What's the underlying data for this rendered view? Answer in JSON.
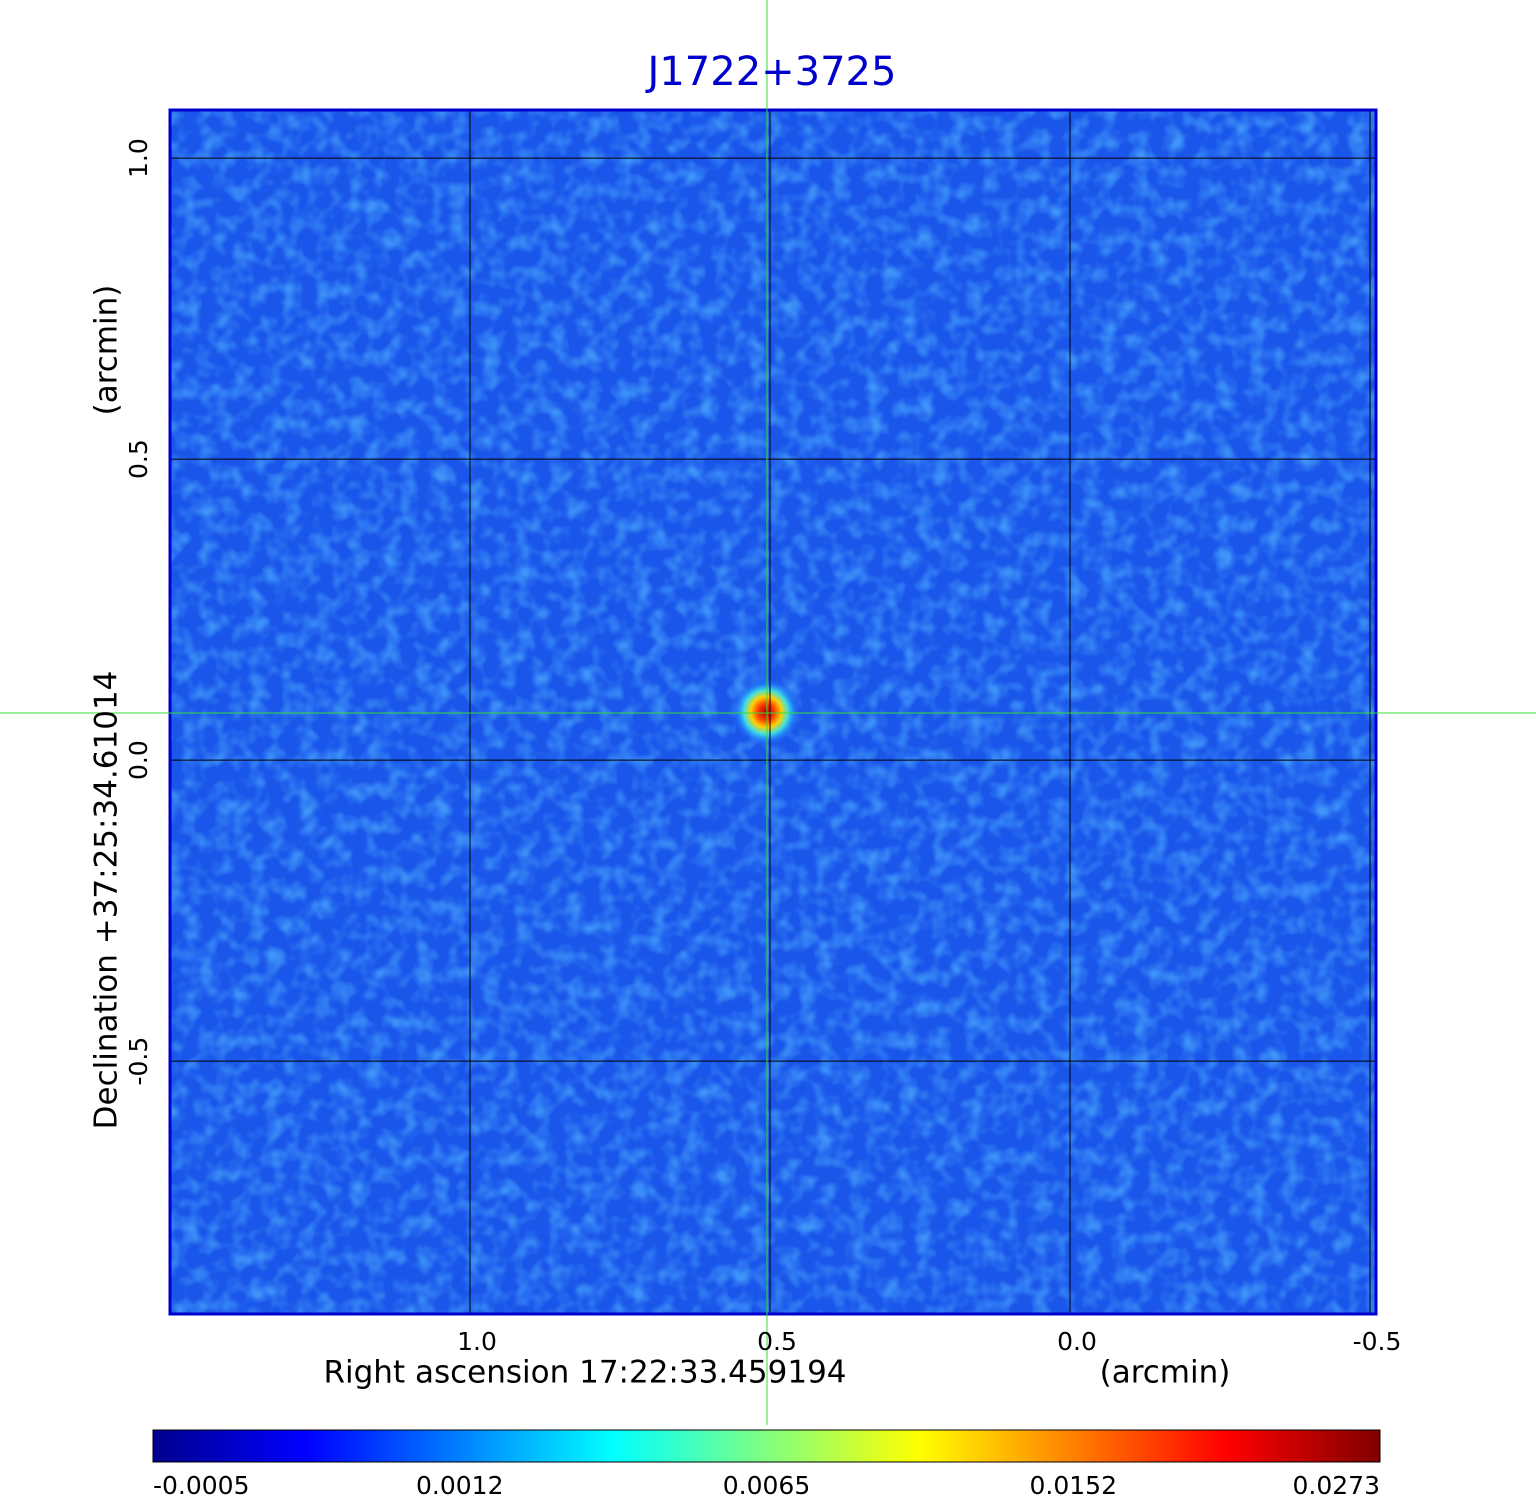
{
  "chart_data": {
    "type": "image",
    "title": "J1722+3725",
    "x_label": "Right ascension  17:22:33.459194",
    "x_unit": "(arcmin)",
    "y_label": "Declination  +37:25:34.61014",
    "y_unit": "(arcmin)",
    "xlim": [
      1.5,
      -0.51
    ],
    "ylim": [
      -0.92,
      1.08
    ],
    "xticks": [
      {
        "value": 1,
        "label": "1.0"
      },
      {
        "value": 0.5,
        "label": "0.5"
      },
      {
        "value": 0,
        "label": "0.0"
      },
      {
        "value": -0.5,
        "label": "-0.5"
      }
    ],
    "yticks": [
      {
        "value": 1,
        "label": "1.0"
      },
      {
        "value": 0.5,
        "label": "0.5"
      },
      {
        "value": 0,
        "label": "0.0"
      },
      {
        "value": -0.5,
        "label": "-0.5"
      }
    ],
    "grid": true,
    "colormap": "jet",
    "colorbar_ticks": [
      -0.0005,
      0.0012,
      0.0065,
      0.0152,
      0.0273
    ]
  }
}
